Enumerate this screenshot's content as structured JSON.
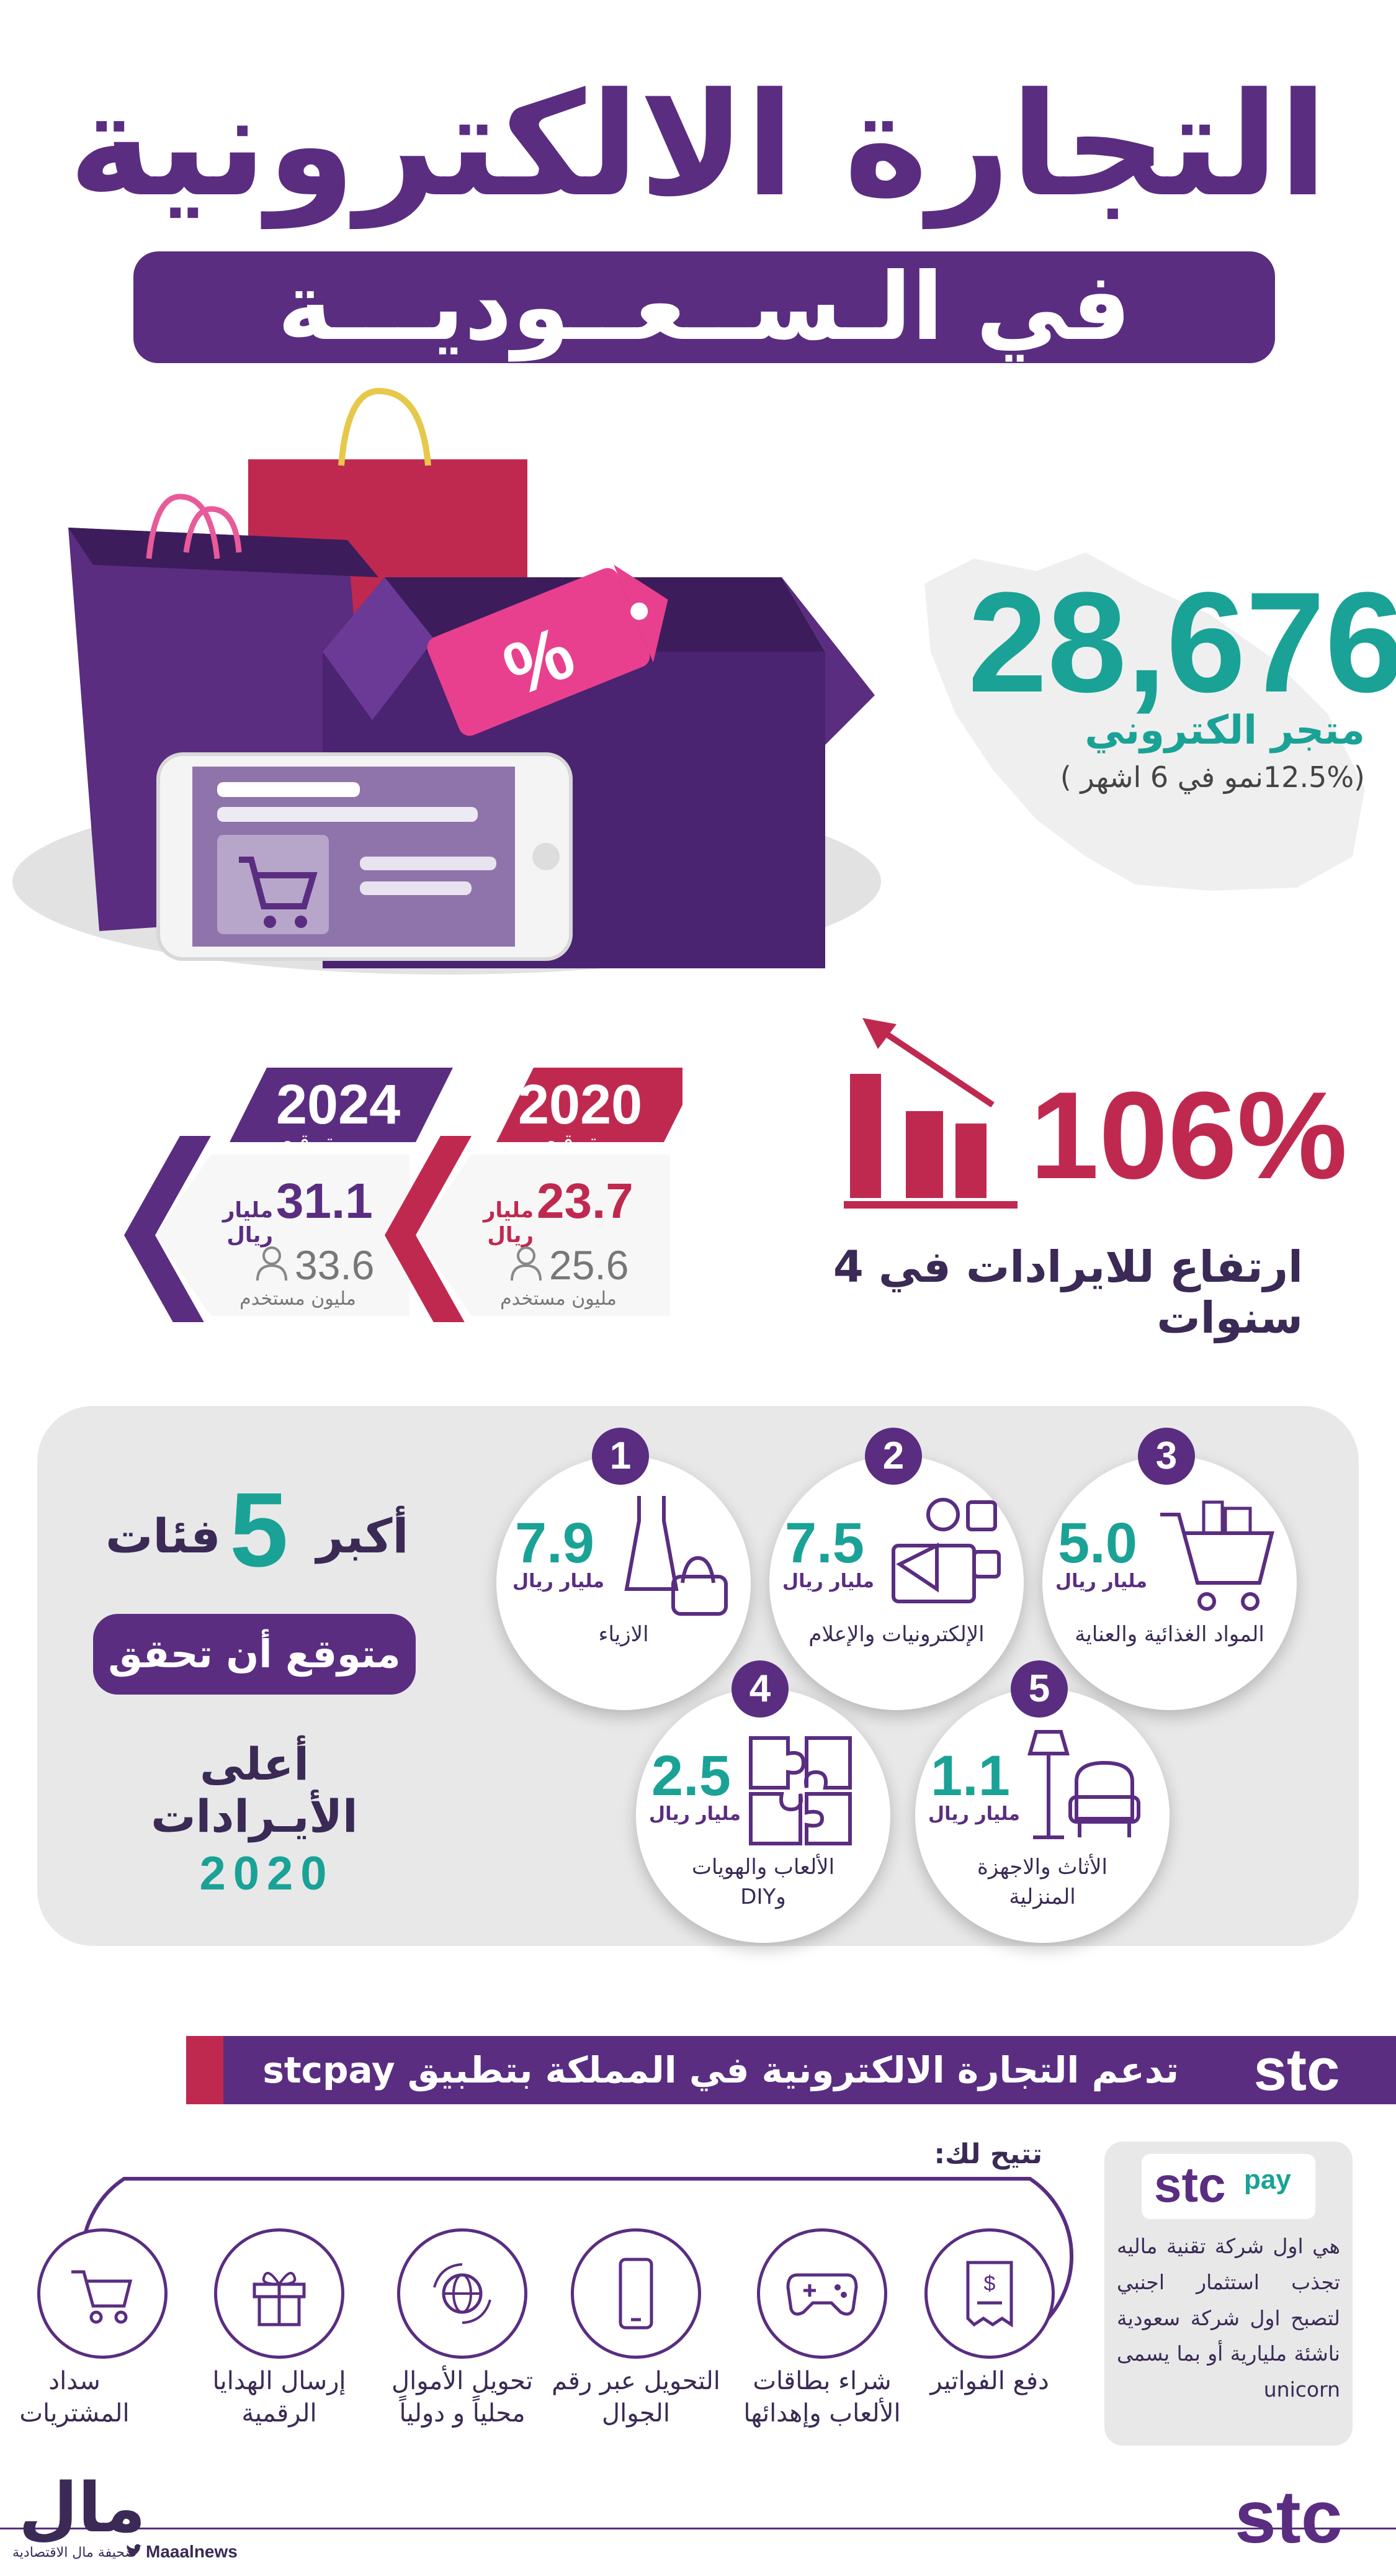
{
  "header": {
    "title": "التجارة الالكترونية",
    "subtitle": "في الـســعــوديـــة"
  },
  "stores": {
    "count": "28,676",
    "label": "متجر الكتروني",
    "growth": "(12.5%نمو في 6 اشهر )",
    "tag_symbol": "%"
  },
  "revenue": {
    "growth_pct": "106%",
    "caption": "ارتفاع للايرادات في 4 سنوات"
  },
  "forecasts": [
    {
      "year": "2020",
      "expected": "مـتـوقـع",
      "revenue": "23.7",
      "revenue_unit": "مليار ريال",
      "users": "25.6",
      "users_unit": "مليون مستخدم"
    },
    {
      "year": "2024",
      "expected": "مـتـوقـع",
      "revenue": "31.1",
      "revenue_unit": "مليار ريال",
      "users": "33.6",
      "users_unit": "مليون مستخدم"
    }
  ],
  "categories_panel": {
    "heading_top": "أكبر",
    "heading_num": "5",
    "heading_word": "فئات",
    "pill_text": "متوقع أن تحقق",
    "line3": "أعلى الأيـرادات",
    "year": "2020"
  },
  "categories": [
    {
      "rank": "1",
      "value": "7.9",
      "unit": "مليار ريال",
      "name": "الازياء",
      "icon": "dress-bag-icon"
    },
    {
      "rank": "2",
      "value": "7.5",
      "unit": "مليار ريال",
      "name": "الإلكترونيات والإعلام",
      "icon": "electronics-media-icon"
    },
    {
      "rank": "3",
      "value": "5.0",
      "unit": "مليار ريال",
      "name": "المواد الغذائية والعناية",
      "icon": "grocery-cart-icon"
    },
    {
      "rank": "4",
      "value": "2.5",
      "unit": "مليار ريال",
      "name": "الألعاب والهويات وDIY",
      "icon": "puzzle-icon"
    },
    {
      "rank": "5",
      "value": "1.1",
      "unit": "مليار ريال",
      "name": "الأثاث والاجهزة المنزلية",
      "icon": "armchair-lamp-icon"
    }
  ],
  "stc_banner": {
    "text": "تدعم التجارة الالكترونية في المملكة بتطبيق stcpay",
    "logo": "stc"
  },
  "stcpay": {
    "logo_main": "stc",
    "logo_pay": "pay",
    "description": "هي اول شركة تقنية ماليه تجذب استثمار اجنبي لتصبح اول شركة سعودية ناشئة مليارية أو بما يسمى unicorn"
  },
  "offers": {
    "title": "تتيح لك:",
    "items": [
      {
        "label": "دفع الفواتير",
        "icon": "bill-receipt-icon"
      },
      {
        "label": "شراء بطاقات الألعاب وإهدائها",
        "icon": "gamepad-icon"
      },
      {
        "label": "التحويل عبر رقم الجوال",
        "icon": "mobile-phone-icon"
      },
      {
        "label": "تحويل الأموال محلياً و دولياً",
        "icon": "globe-transfer-icon"
      },
      {
        "label": "إرسال الهدايا الرقمية",
        "icon": "gift-icon"
      },
      {
        "label": "سداد المشتريات",
        "icon": "shopping-cart-icon"
      }
    ]
  },
  "footer": {
    "publisher_logo": "مال",
    "publisher_desc": "صحيفة مال الاقتصادية",
    "twitter": "Maaalnews",
    "brand_logo": "stc"
  },
  "colors": {
    "purple": "#5a2d81",
    "teal": "#1aa296",
    "crimson": "#c0294f",
    "panel_gray": "#e8e8e9"
  }
}
